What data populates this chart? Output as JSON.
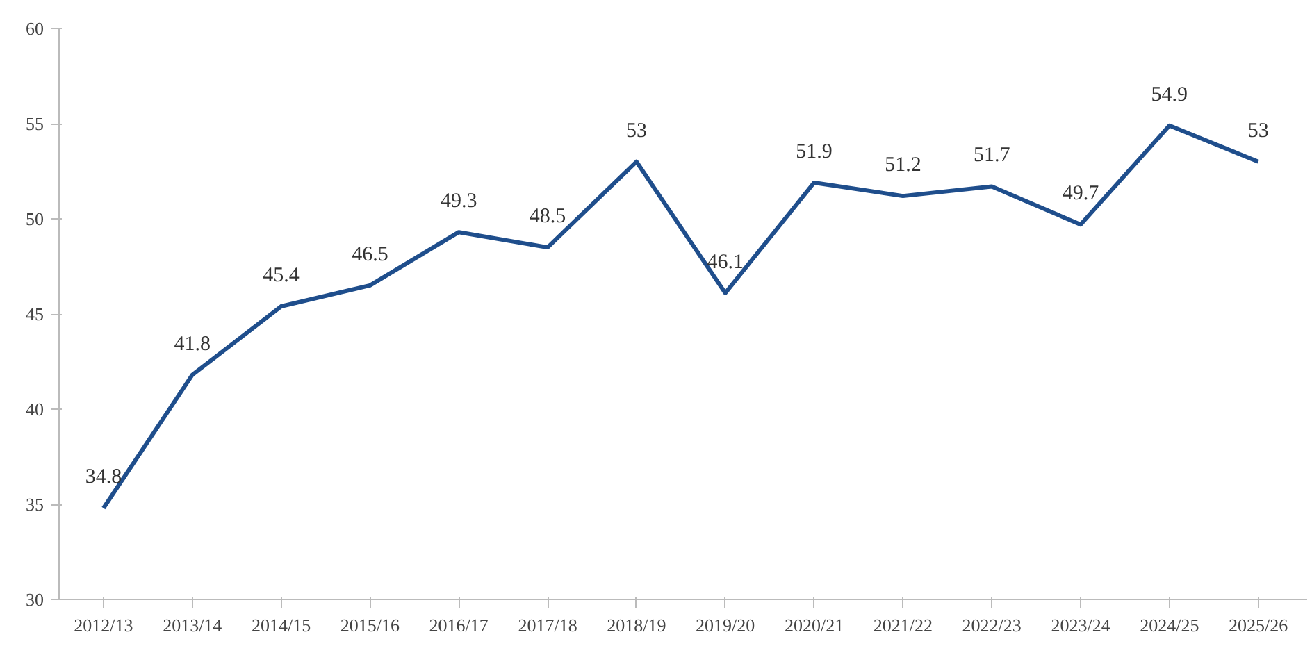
{
  "chart_data": {
    "type": "line",
    "categories": [
      "2012/13",
      "2013/14",
      "2014/15",
      "2015/16",
      "2016/17",
      "2017/18",
      "2018/19",
      "2019/20",
      "2020/21",
      "2021/22",
      "2022/23",
      "2023/24",
      "2024/25",
      "2025/26"
    ],
    "series": [
      {
        "color": "#1f4e8c",
        "values": [
          34.8,
          41.8,
          45.4,
          46.5,
          49.3,
          48.5,
          53,
          46.1,
          51.9,
          51.2,
          51.7,
          49.7,
          54.9,
          53
        ]
      }
    ],
    "ylim": [
      30,
      60
    ],
    "yticks": [
      30,
      35,
      40,
      45,
      50,
      55,
      60
    ],
    "data_labels": true,
    "line_style": "solid"
  }
}
